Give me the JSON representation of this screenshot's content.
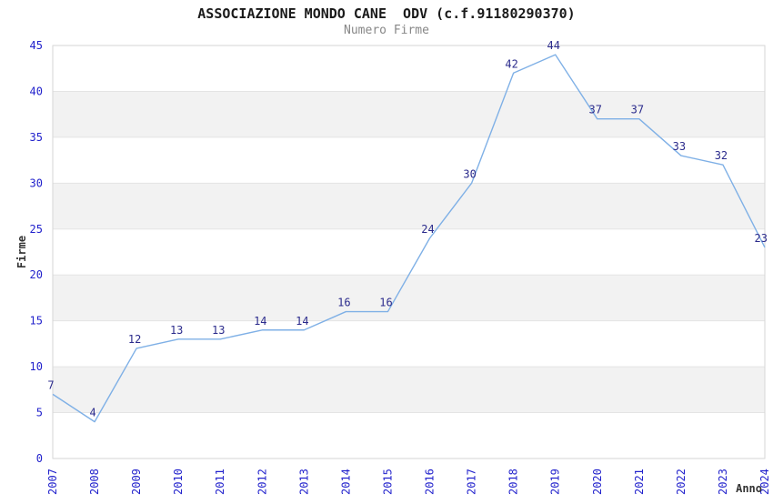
{
  "header": {
    "title": "ASSOCIAZIONE MONDO CANE  ODV (c.f.91180290370)",
    "subtitle": "Numero Firme"
  },
  "chart_data": {
    "type": "line",
    "title": "ASSOCIAZIONE MONDO CANE  ODV (c.f.91180290370)",
    "subtitle": "Numero Firme",
    "x": [
      "2007",
      "2008",
      "2009",
      "2010",
      "2011",
      "2012",
      "2013",
      "2014",
      "2015",
      "2016",
      "2017",
      "2018",
      "2019",
      "2020",
      "2021",
      "2022",
      "2023",
      "2024"
    ],
    "values": [
      7,
      4,
      12,
      13,
      13,
      14,
      14,
      16,
      16,
      24,
      30,
      42,
      44,
      37,
      37,
      33,
      32,
      23
    ],
    "xlabel": "Anno",
    "ylabel": "Firme",
    "ylim": [
      0,
      45
    ],
    "ytick_step": 5,
    "yticks": [
      0,
      5,
      10,
      15,
      20,
      25,
      30,
      35,
      40,
      45
    ],
    "grid": "alternating-horizontal-bands",
    "legend": "none",
    "point_labels_shown": true
  },
  "colors": {
    "line": "#7fb0e6",
    "tick_label": "#2222cc",
    "point_label": "#2b2b8c",
    "band_fill": "#f2f2f2",
    "gridline": "#e4e4e4",
    "plot_border": "#d6d6d6",
    "title_text": "#1a1a1a",
    "subtitle_text": "#878787",
    "axis_title_text": "#333333",
    "background": "#ffffff"
  }
}
